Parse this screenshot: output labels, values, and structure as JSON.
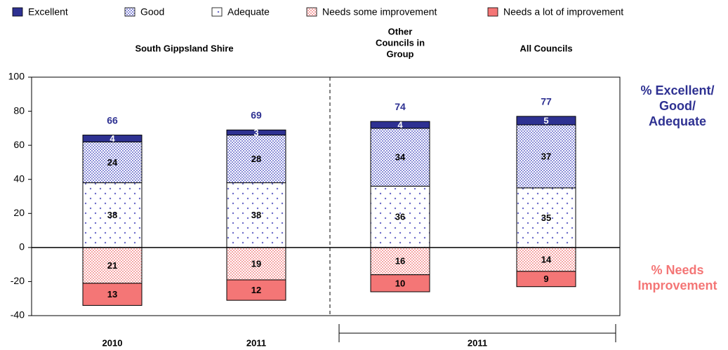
{
  "chart_data": {
    "type": "stacked_bar",
    "categories": [
      "2010",
      "2011",
      null,
      null
    ],
    "bracket_label": "2011",
    "top_labels": [
      [
        "South Gippsland Shire"
      ],
      [
        "Other",
        "Councils in",
        "Group"
      ],
      [
        "All Councils"
      ]
    ],
    "series": [
      {
        "name": "Excellent",
        "color": "#2e3192",
        "pattern": "solid",
        "label_color": "#ffffff",
        "values": [
          4,
          3,
          4,
          5
        ]
      },
      {
        "name": "Good",
        "color": "#8c8fd9",
        "pattern": "check",
        "label_color": "#000000",
        "values": [
          24,
          28,
          34,
          37
        ]
      },
      {
        "name": "Adequate",
        "color": "#6b6bc9",
        "pattern": "dots",
        "label_color": "#000000",
        "values": [
          38,
          38,
          36,
          35
        ]
      },
      {
        "name": "Needs some improvement",
        "color": "#f6a6a6",
        "pattern": "check",
        "label_color": "#000000",
        "values": [
          -21,
          -19,
          -16,
          -14
        ],
        "value_labels": [
          "21",
          "19",
          "16",
          "14"
        ]
      },
      {
        "name": "Needs a lot of improvement",
        "color": "#f47676",
        "pattern": "solid",
        "label_color": "#000000",
        "values": [
          -13,
          -12,
          -10,
          -9
        ],
        "value_labels": [
          "13",
          "12",
          "10",
          "9"
        ]
      }
    ],
    "totals": [
      66,
      69,
      74,
      77
    ],
    "totals_color": "#2e3192",
    "annotations": [
      {
        "lines": [
          "% Excellent/",
          "Good/",
          "Adequate"
        ],
        "color": "#2e3192"
      },
      {
        "lines": [
          "% Needs",
          "Improvement"
        ],
        "color": "#f47676"
      }
    ],
    "ylim": [
      -40,
      100
    ],
    "yticks": [
      100,
      80,
      60,
      40,
      20,
      0,
      -20,
      -40
    ],
    "grid": false
  }
}
